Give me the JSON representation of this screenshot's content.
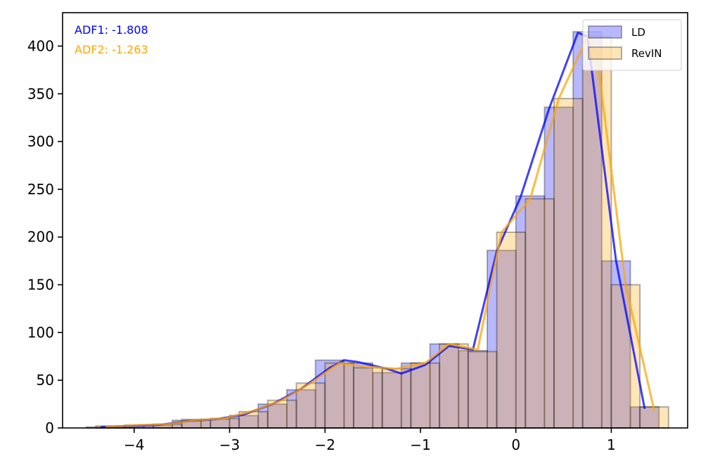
{
  "chart_data": {
    "type": "bar",
    "title": "",
    "xlabel": "",
    "ylabel": "",
    "xlim": [
      -4.75,
      1.8
    ],
    "ylim": [
      0,
      435
    ],
    "xticks": [
      -4,
      -3,
      -2,
      -1,
      0,
      1
    ],
    "xtick_labels": [
      "−4",
      "−3",
      "−2",
      "−1",
      "0",
      "1"
    ],
    "yticks": [
      0,
      50,
      100,
      150,
      200,
      250,
      300,
      350,
      400
    ],
    "ytick_labels": [
      "0",
      "50",
      "100",
      "150",
      "200",
      "250",
      "300",
      "350",
      "400"
    ],
    "grid": false,
    "legend_position": "top-right",
    "annotations": [
      {
        "text": "ADF1: -1.808",
        "color": "#0000ff"
      },
      {
        "text": "ADF2: -1.263",
        "color": "#ffa500"
      }
    ],
    "series": [
      {
        "name": "LD",
        "color": "#0000ff",
        "bin_edges": [
          -4.5,
          -4.2,
          -3.9,
          -3.6,
          -3.3,
          -3.0,
          -2.7,
          -2.4,
          -2.1,
          -1.8,
          -1.5,
          -1.2,
          -0.9,
          -0.6,
          -0.3,
          0.0,
          0.3,
          0.6,
          0.9,
          1.2,
          1.5
        ],
        "counts": [
          1,
          2,
          3,
          8,
          9,
          13,
          25,
          40,
          71,
          68,
          58,
          68,
          88,
          81,
          186,
          243,
          336,
          415,
          175,
          22
        ],
        "kde_x": [
          -4.35,
          -4.05,
          -3.75,
          -3.45,
          -3.15,
          -2.85,
          -2.55,
          -2.25,
          -1.95,
          -1.8,
          -1.65,
          -1.35,
          -1.2,
          -0.95,
          -0.7,
          -0.45,
          -0.2,
          0.05,
          0.35,
          0.65,
          0.75,
          1.05,
          1.35
        ],
        "kde_y": [
          1,
          2,
          3,
          7,
          9,
          14,
          25,
          41,
          63,
          71,
          69,
          62,
          57,
          66,
          86,
          82,
          185,
          242,
          335,
          414,
          410,
          175,
          20
        ]
      },
      {
        "name": "RevIN",
        "color": "#ffa500",
        "bin_edges": [
          -4.4,
          -4.1,
          -3.8,
          -3.5,
          -3.2,
          -2.9,
          -2.6,
          -2.3,
          -2.0,
          -1.7,
          -1.4,
          -1.1,
          -0.8,
          -0.5,
          -0.2,
          0.1,
          0.4,
          0.7,
          1.0,
          1.3,
          1.6
        ],
        "counts": [
          2,
          3,
          4,
          9,
          10,
          17,
          29,
          47,
          68,
          63,
          62,
          68,
          88,
          80,
          205,
          240,
          345,
          410,
          150,
          22
        ],
        "kde_x": [
          -4.3,
          -3.95,
          -3.65,
          -3.35,
          -3.05,
          -2.75,
          -2.45,
          -2.15,
          -1.85,
          -1.55,
          -1.25,
          -0.95,
          -0.7,
          -0.4,
          -0.15,
          0.15,
          0.45,
          0.75,
          0.85,
          1.15,
          1.45
        ],
        "kde_y": [
          1,
          3,
          4,
          8,
          10,
          18,
          29,
          47,
          68,
          64,
          62,
          68,
          88,
          82,
          205,
          240,
          345,
          410,
          390,
          150,
          18
        ]
      }
    ]
  }
}
